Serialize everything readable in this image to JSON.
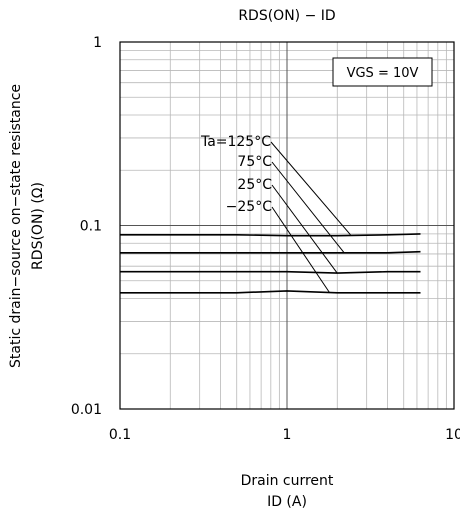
{
  "chart_data": {
    "type": "line",
    "title": "RDS(ON) − ID",
    "xlabel_line1": "Drain current",
    "xlabel_line2": "ID (A)",
    "ylabel_line1": "Static drain−source on−state resistance",
    "ylabel_line2": "RDS(ON) (Ω)",
    "x_scale": "log",
    "y_scale": "log",
    "xlim": [
      0.1,
      10
    ],
    "ylim": [
      0.01,
      1
    ],
    "x_ticks": [
      {
        "value": 0.1,
        "label": "0.1"
      },
      {
        "value": 1,
        "label": "1"
      },
      {
        "value": 10,
        "label": "10"
      }
    ],
    "y_ticks": [
      {
        "value": 1,
        "label": "1"
      },
      {
        "value": 0.1,
        "label": "0.1"
      },
      {
        "value": 0.01,
        "label": "0.01"
      }
    ],
    "grid": true,
    "condition_label": "VGS = 10V",
    "series": [
      {
        "name": "Ta=125°C",
        "x": [
          0.1,
          0.5,
          1,
          2,
          4,
          6.3
        ],
        "y": [
          0.089,
          0.089,
          0.088,
          0.088,
          0.089,
          0.09
        ]
      },
      {
        "name": "75°C",
        "x": [
          0.1,
          0.5,
          1,
          2,
          4,
          6.3
        ],
        "y": [
          0.071,
          0.071,
          0.071,
          0.071,
          0.071,
          0.072
        ]
      },
      {
        "name": "25°C",
        "x": [
          0.1,
          0.5,
          1,
          2,
          4,
          6.3
        ],
        "y": [
          0.056,
          0.056,
          0.056,
          0.055,
          0.056,
          0.056
        ]
      },
      {
        "name": "−25°C",
        "x": [
          0.1,
          0.5,
          1,
          2,
          4,
          6.3
        ],
        "y": [
          0.043,
          0.043,
          0.044,
          0.043,
          0.043,
          0.043
        ]
      }
    ],
    "series_label_pointers": [
      {
        "series": "Ta=125°C",
        "x": 2.4
      },
      {
        "series": "75°C",
        "x": 2.2
      },
      {
        "series": "25°C",
        "x": 2.0
      },
      {
        "series": "−25°C",
        "x": 1.8
      }
    ]
  }
}
